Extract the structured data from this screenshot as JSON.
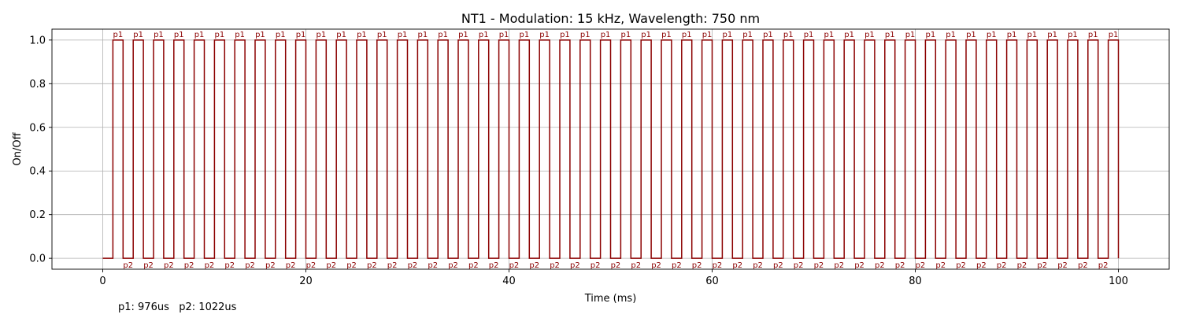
{
  "chart_data": {
    "type": "line",
    "title": "NT1 - Modulation: 15 kHz, Wavelength: 750 nm",
    "xlabel": "Time (ms)",
    "ylabel": "On/Off",
    "xlim": [
      -5,
      105
    ],
    "ylim": [
      -0.05,
      1.05
    ],
    "x_ticks": [
      0,
      20,
      40,
      60,
      80,
      100
    ],
    "y_ticks": [
      0.0,
      0.2,
      0.4,
      0.6,
      0.8,
      1.0
    ],
    "x_tick_labels": [
      "0",
      "20",
      "40",
      "60",
      "80",
      "100"
    ],
    "y_tick_labels": [
      "0.0",
      "0.2",
      "0.4",
      "0.6",
      "0.8",
      "1.0"
    ],
    "grid": true,
    "line_color": "#8b0000",
    "label_color": "#8b0000",
    "series": [
      {
        "step": "post",
        "start_time_ms": 0,
        "initial_state": 0,
        "initial_off_ms": 1.0,
        "on_duration_ms": 1.0,
        "off_duration_ms": 1.0,
        "pulse_count": 50,
        "end_time_ms": 100,
        "on_label": "p1",
        "off_label": "p2"
      }
    ]
  },
  "footnote": "p1: 976us   p2: 1022us"
}
